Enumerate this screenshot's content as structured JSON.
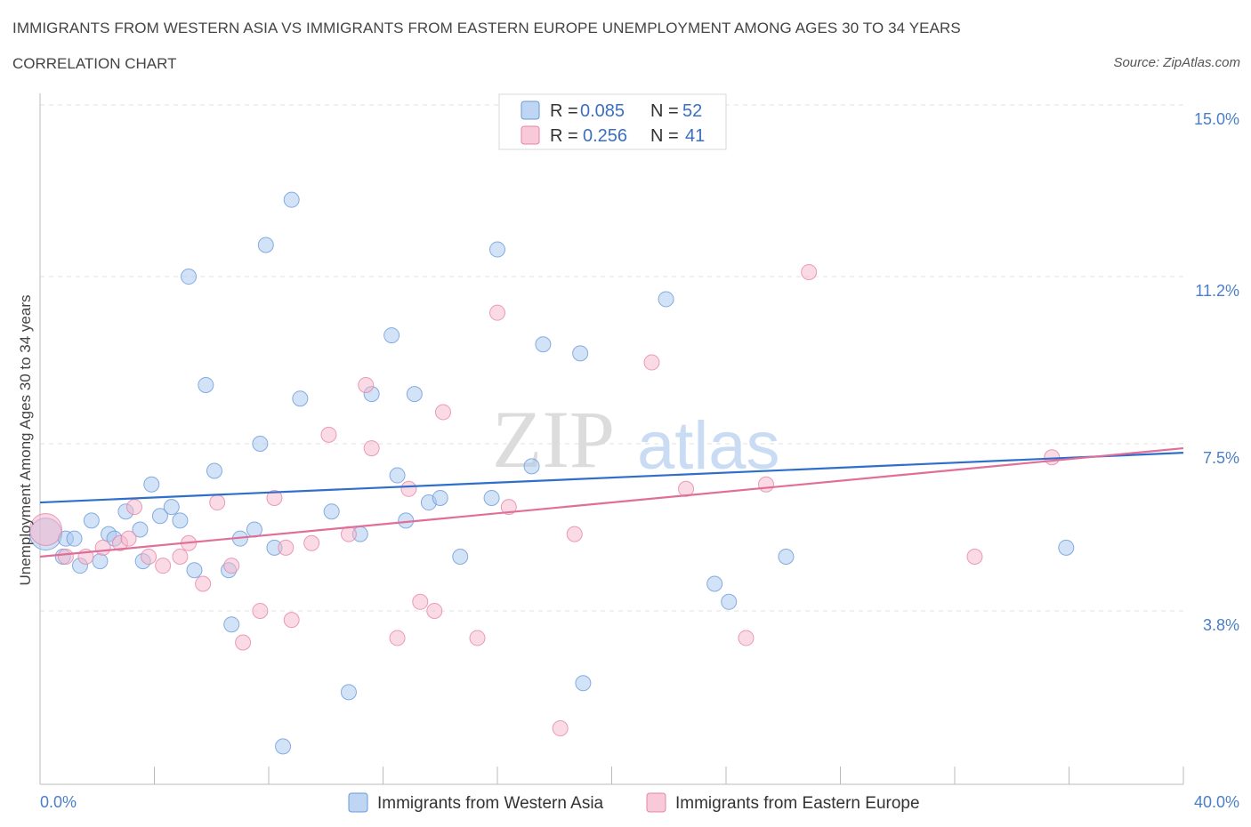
{
  "header": {
    "title": "IMMIGRANTS FROM WESTERN ASIA VS IMMIGRANTS FROM EASTERN EUROPE UNEMPLOYMENT AMONG AGES 30 TO 34 YEARS",
    "subtitle": "CORRELATION CHART",
    "source": "Source: ZipAtlas.com"
  },
  "watermark": {
    "zip": "ZIP",
    "atlas": "atlas"
  },
  "legend": {
    "series1": {
      "r_label": "R =",
      "r_value": "0.085",
      "n_label": "N =",
      "n_value": "52"
    },
    "series2": {
      "r_label": "R =",
      "r_value": "0.256",
      "n_label": "N =",
      "n_value": "41"
    }
  },
  "chart_data": {
    "type": "scatter",
    "xlabel": "",
    "ylabel": "Unemployment Among Ages 30 to 34 years",
    "xlim": [
      0,
      40
    ],
    "ylim": [
      0,
      15
    ],
    "x_tick_labels": [
      "0.0%",
      "40.0%"
    ],
    "y_ticks": [
      3.8,
      7.5,
      11.2,
      15.0
    ],
    "y_tick_labels": [
      "3.8%",
      "7.5%",
      "11.2%",
      "15.0%"
    ],
    "grid": true,
    "series": [
      {
        "name": "Immigrants from Western Asia",
        "color": "#a8c8f0",
        "edge": "#6a9ad8",
        "line_color": "#2f6fcc",
        "trend": [
          [
            0,
            6.2
          ],
          [
            40,
            7.3
          ]
        ],
        "points": [
          [
            0.2,
            5.5
          ],
          [
            0.8,
            5.0
          ],
          [
            0.9,
            5.4
          ],
          [
            1.2,
            5.4
          ],
          [
            1.4,
            4.8
          ],
          [
            1.8,
            5.8
          ],
          [
            2.1,
            4.9
          ],
          [
            2.4,
            5.5
          ],
          [
            2.6,
            5.4
          ],
          [
            3.0,
            6.0
          ],
          [
            3.5,
            5.6
          ],
          [
            3.6,
            4.9
          ],
          [
            3.9,
            6.6
          ],
          [
            4.2,
            5.9
          ],
          [
            4.6,
            6.1
          ],
          [
            4.9,
            5.8
          ],
          [
            5.2,
            11.2
          ],
          [
            5.4,
            4.7
          ],
          [
            5.8,
            8.8
          ],
          [
            6.1,
            6.9
          ],
          [
            6.6,
            4.7
          ],
          [
            6.7,
            3.5
          ],
          [
            7.0,
            5.4
          ],
          [
            7.5,
            5.6
          ],
          [
            7.7,
            7.5
          ],
          [
            7.9,
            11.9
          ],
          [
            8.2,
            5.2
          ],
          [
            8.5,
            0.8
          ],
          [
            8.8,
            12.9
          ],
          [
            9.1,
            8.5
          ],
          [
            10.2,
            6.0
          ],
          [
            10.8,
            2.0
          ],
          [
            11.2,
            5.5
          ],
          [
            11.6,
            8.6
          ],
          [
            12.3,
            9.9
          ],
          [
            12.5,
            6.8
          ],
          [
            12.8,
            5.8
          ],
          [
            13.1,
            8.6
          ],
          [
            13.6,
            6.2
          ],
          [
            14.0,
            6.3
          ],
          [
            14.7,
            5.0
          ],
          [
            15.8,
            6.3
          ],
          [
            16.0,
            11.8
          ],
          [
            17.2,
            7.0
          ],
          [
            17.6,
            9.7
          ],
          [
            18.9,
            9.5
          ],
          [
            19.0,
            2.2
          ],
          [
            21.9,
            10.7
          ],
          [
            23.6,
            4.4
          ],
          [
            24.1,
            4.0
          ],
          [
            26.1,
            5.0
          ],
          [
            35.9,
            5.2
          ]
        ]
      },
      {
        "name": "Immigrants from Eastern Europe",
        "color": "#f6b7cc",
        "edge": "#e684a6",
        "line_color": "#e06e98",
        "trend": [
          [
            0,
            5.0
          ],
          [
            40,
            7.4
          ]
        ],
        "points": [
          [
            0.2,
            5.6
          ],
          [
            0.9,
            5.0
          ],
          [
            1.6,
            5.0
          ],
          [
            2.2,
            5.2
          ],
          [
            2.8,
            5.3
          ],
          [
            3.1,
            5.4
          ],
          [
            3.3,
            6.1
          ],
          [
            3.8,
            5.0
          ],
          [
            4.3,
            4.8
          ],
          [
            4.9,
            5.0
          ],
          [
            5.2,
            5.3
          ],
          [
            5.7,
            4.4
          ],
          [
            6.2,
            6.2
          ],
          [
            6.7,
            4.8
          ],
          [
            7.1,
            3.1
          ],
          [
            7.7,
            3.8
          ],
          [
            8.2,
            6.3
          ],
          [
            8.6,
            5.2
          ],
          [
            8.8,
            3.6
          ],
          [
            9.5,
            5.3
          ],
          [
            10.1,
            7.7
          ],
          [
            10.8,
            5.5
          ],
          [
            11.4,
            8.8
          ],
          [
            11.6,
            7.4
          ],
          [
            12.5,
            3.2
          ],
          [
            12.9,
            6.5
          ],
          [
            13.3,
            4.0
          ],
          [
            13.8,
            3.8
          ],
          [
            14.1,
            8.2
          ],
          [
            15.3,
            3.2
          ],
          [
            16.0,
            10.4
          ],
          [
            16.4,
            6.1
          ],
          [
            18.2,
            1.2
          ],
          [
            18.7,
            5.5
          ],
          [
            21.4,
            9.3
          ],
          [
            22.6,
            6.5
          ],
          [
            24.7,
            3.2
          ],
          [
            25.4,
            6.6
          ],
          [
            26.9,
            11.3
          ],
          [
            32.7,
            5.0
          ],
          [
            35.4,
            7.2
          ]
        ]
      }
    ]
  }
}
